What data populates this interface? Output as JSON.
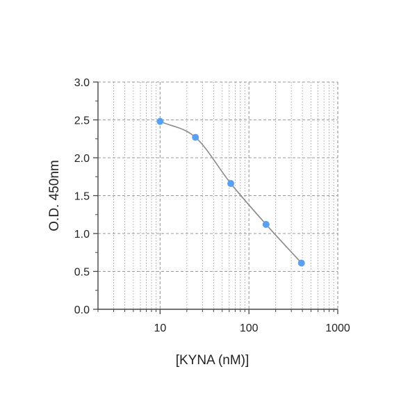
{
  "chart_data": {
    "type": "scatter",
    "xlabel": "[KYNA (nM)]",
    "ylabel": "O.D. 450nm",
    "xscale": "log",
    "xlim": [
      2,
      1000
    ],
    "ylim": [
      0,
      3.0
    ],
    "x_ticks": [
      10,
      100,
      1000
    ],
    "x_tick_labels": [
      "10",
      "100",
      "1000"
    ],
    "y_ticks": [
      0,
      0.5,
      1.0,
      1.5,
      2.0,
      2.5,
      3.0
    ],
    "y_tick_labels": [
      "0.0",
      "0.5",
      "1.0",
      "1.5",
      "2.0",
      "2.5",
      "3.0"
    ],
    "grid": true,
    "fit_curve": true,
    "colors": {
      "points": "#5aa0f0",
      "curve": "#8a8a8a",
      "grid": "#9a9a9a",
      "axis": "#444444"
    },
    "series": [
      {
        "x": [
          10,
          25,
          62.5,
          156,
          390
        ],
        "y": [
          2.48,
          2.27,
          1.66,
          1.12,
          0.61
        ]
      }
    ]
  }
}
